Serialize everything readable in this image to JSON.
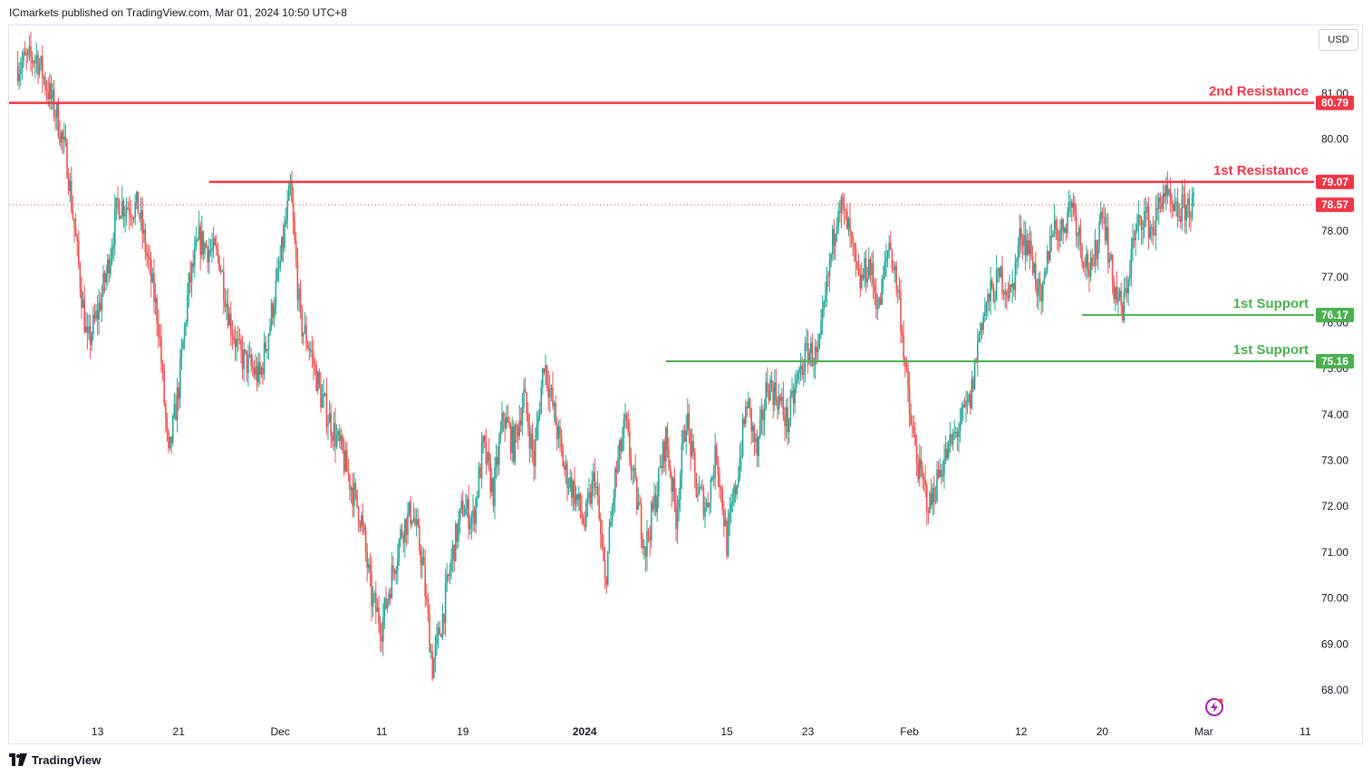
{
  "header": {
    "publisher": "ICmarkets published on TradingView.com, Mar 01, 2024 10:50 UTC+8"
  },
  "toolbar": {
    "currency": "USD"
  },
  "footer": {
    "brand": "TradingView"
  },
  "icons": {
    "flash": "lightning-icon",
    "logo": "tradingview-logo-icon"
  },
  "colors": {
    "up": "#26a69a",
    "down": "#ef5350",
    "resistance": "#f23645",
    "support": "#4caf50",
    "last_price_line": "#f23645"
  },
  "levels": [
    {
      "name": "2nd Resistance",
      "value": 80.79,
      "badge": "80.79",
      "kind": "resistance",
      "start_day": 0
    },
    {
      "name": "1st Resistance",
      "value": 79.07,
      "badge": "79.07",
      "kind": "resistance",
      "start_day": 19
    },
    {
      "name": "1st Support",
      "value": 76.17,
      "badge": "76.17",
      "kind": "support",
      "start_day": 105
    },
    {
      "name": "1st Support",
      "value": 75.16,
      "badge": "75.16",
      "kind": "support",
      "start_day": 64
    }
  ],
  "last_price": {
    "value": 78.57,
    "badge": "78.57"
  },
  "chart_data": {
    "type": "candlestick",
    "title": "",
    "xlabel": "",
    "ylabel": "",
    "ylim": [
      67.3,
      82.1
    ],
    "y_ticks": [
      "68.00",
      "69.00",
      "70.00",
      "71.00",
      "72.00",
      "73.00",
      "74.00",
      "75.00",
      "76.00",
      "77.00",
      "78.00",
      "79.00",
      "80.00",
      "81.00"
    ],
    "x_ticks": [
      {
        "label": "13",
        "day": 8
      },
      {
        "label": "21",
        "day": 16
      },
      {
        "label": "Dec",
        "day": 26,
        "bold": false
      },
      {
        "label": "11",
        "day": 36
      },
      {
        "label": "19",
        "day": 44
      },
      {
        "label": "2024",
        "day": 56,
        "bold": true
      },
      {
        "label": "15",
        "day": 70
      },
      {
        "label": "23",
        "day": 78
      },
      {
        "label": "Feb",
        "day": 88
      },
      {
        "label": "12",
        "day": 99
      },
      {
        "label": "20",
        "day": 107
      },
      {
        "label": "Mar",
        "day": 117
      },
      {
        "label": "11",
        "day": 127
      }
    ],
    "price_path": [
      [
        0,
        81.6
      ],
      [
        2,
        81.8
      ],
      [
        4,
        80.5
      ],
      [
        5,
        79.5
      ],
      [
        6,
        77.5
      ],
      [
        7,
        75.5
      ],
      [
        8,
        76.2
      ],
      [
        9,
        77.2
      ],
      [
        10,
        78.6
      ],
      [
        12,
        78.5
      ],
      [
        13,
        77.3
      ],
      [
        14,
        76.0
      ],
      [
        15,
        73.0
      ],
      [
        16,
        74.6
      ],
      [
        17,
        76.8
      ],
      [
        18,
        77.8
      ],
      [
        20,
        77.4
      ],
      [
        21,
        76.1
      ],
      [
        22,
        75.3
      ],
      [
        24,
        74.8
      ],
      [
        25,
        76.0
      ],
      [
        26,
        77.3
      ],
      [
        27,
        78.9
      ],
      [
        28,
        76.0
      ],
      [
        29,
        75.4
      ],
      [
        30,
        74.4
      ],
      [
        32,
        73.2
      ],
      [
        34,
        71.7
      ],
      [
        35,
        70.0
      ],
      [
        36,
        69.4
      ],
      [
        37,
        70.5
      ],
      [
        38,
        71.5
      ],
      [
        39,
        71.9
      ],
      [
        40,
        70.8
      ],
      [
        41,
        68.5
      ],
      [
        42,
        69.6
      ],
      [
        43,
        71.0
      ],
      [
        44,
        72.0
      ],
      [
        45,
        71.7
      ],
      [
        46,
        73.3
      ],
      [
        47,
        72.3
      ],
      [
        48,
        74.0
      ],
      [
        49,
        73.3
      ],
      [
        50,
        74.4
      ],
      [
        51,
        73.0
      ],
      [
        52,
        75.2
      ],
      [
        53,
        74.0
      ],
      [
        54,
        72.8
      ],
      [
        55,
        72.3
      ],
      [
        56,
        71.6
      ],
      [
        57,
        72.7
      ],
      [
        58,
        70.3
      ],
      [
        59,
        72.6
      ],
      [
        60,
        73.8
      ],
      [
        61,
        72.3
      ],
      [
        62,
        71.1
      ],
      [
        63,
        72.2
      ],
      [
        64,
        73.5
      ],
      [
        65,
        71.8
      ],
      [
        66,
        74.0
      ],
      [
        67,
        72.4
      ],
      [
        68,
        72.0
      ],
      [
        69,
        73.2
      ],
      [
        70,
        71.2
      ],
      [
        71,
        72.6
      ],
      [
        72,
        74.3
      ],
      [
        73,
        73.1
      ],
      [
        74,
        74.7
      ],
      [
        75,
        74.4
      ],
      [
        76,
        73.8
      ],
      [
        77,
        74.8
      ],
      [
        78,
        75.4
      ],
      [
        79,
        75.2
      ],
      [
        80,
        77.0
      ],
      [
        81,
        78.7
      ],
      [
        82,
        78.0
      ],
      [
        83,
        76.8
      ],
      [
        84,
        77.3
      ],
      [
        85,
        76.3
      ],
      [
        86,
        77.8
      ],
      [
        87,
        76.5
      ],
      [
        88,
        74.0
      ],
      [
        89,
        72.7
      ],
      [
        90,
        72.0
      ],
      [
        91,
        72.8
      ],
      [
        92,
        73.3
      ],
      [
        93,
        73.8
      ],
      [
        94,
        74.3
      ],
      [
        95,
        76.0
      ],
      [
        96,
        76.6
      ],
      [
        97,
        77.0
      ],
      [
        98,
        76.6
      ],
      [
        99,
        78.0
      ],
      [
        100,
        77.5
      ],
      [
        101,
        76.3
      ],
      [
        102,
        78.1
      ],
      [
        103,
        78.0
      ],
      [
        104,
        78.7
      ],
      [
        105,
        77.6
      ],
      [
        106,
        77.0
      ],
      [
        107,
        78.6
      ],
      [
        108,
        76.9
      ],
      [
        109,
        76.2
      ],
      [
        110,
        77.7
      ],
      [
        111,
        78.4
      ],
      [
        112,
        78.0
      ],
      [
        113,
        78.9
      ],
      [
        114,
        78.3
      ],
      [
        115,
        78.5
      ],
      [
        116,
        78.57
      ]
    ]
  }
}
